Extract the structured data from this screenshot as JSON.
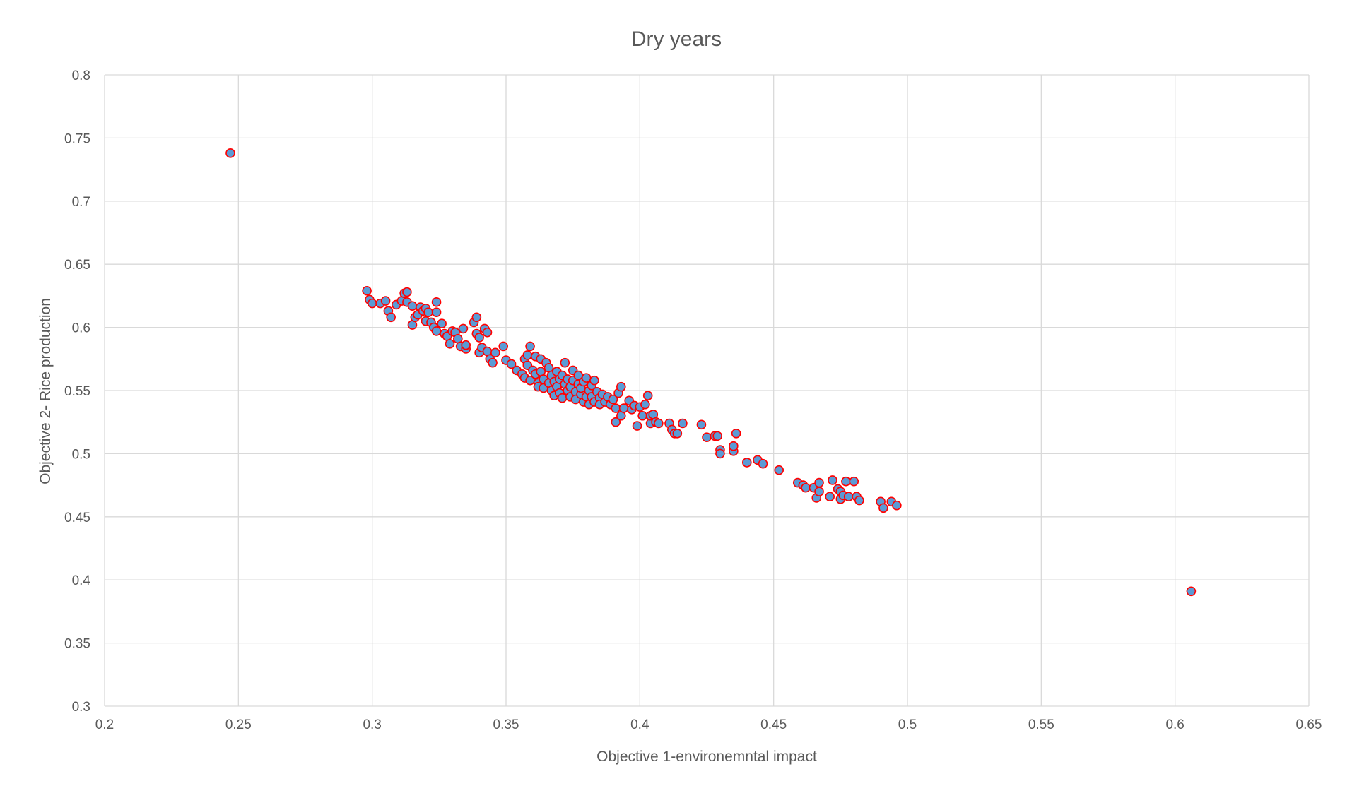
{
  "chart_data": {
    "type": "scatter",
    "title": "Dry years",
    "xlabel": "Objective 1-environemntal impact",
    "ylabel": "Objective 2- Rice production",
    "xlim": [
      0.2,
      0.65
    ],
    "ylim": [
      0.3,
      0.8
    ],
    "xticks": [
      "0.2",
      "0.25",
      "0.3",
      "0.35",
      "0.4",
      "0.45",
      "0.5",
      "0.55",
      "0.6",
      "0.65"
    ],
    "yticks": [
      "0.3",
      "0.35",
      "0.4",
      "0.45",
      "0.5",
      "0.55",
      "0.6",
      "0.65",
      "0.7",
      "0.75",
      "0.8"
    ],
    "grid": true,
    "legend": "none",
    "marker_fill": "#5b9bd5",
    "marker_edge": "#ff0000",
    "points": [
      [
        0.247,
        0.738
      ],
      [
        0.298,
        0.629
      ],
      [
        0.299,
        0.622
      ],
      [
        0.3,
        0.619
      ],
      [
        0.303,
        0.619
      ],
      [
        0.305,
        0.621
      ],
      [
        0.306,
        0.613
      ],
      [
        0.307,
        0.608
      ],
      [
        0.309,
        0.618
      ],
      [
        0.311,
        0.621
      ],
      [
        0.312,
        0.627
      ],
      [
        0.313,
        0.628
      ],
      [
        0.313,
        0.62
      ],
      [
        0.315,
        0.617
      ],
      [
        0.315,
        0.602
      ],
      [
        0.316,
        0.608
      ],
      [
        0.317,
        0.61
      ],
      [
        0.318,
        0.616
      ],
      [
        0.319,
        0.613
      ],
      [
        0.32,
        0.605
      ],
      [
        0.32,
        0.615
      ],
      [
        0.321,
        0.612
      ],
      [
        0.322,
        0.604
      ],
      [
        0.323,
        0.6
      ],
      [
        0.324,
        0.62
      ],
      [
        0.324,
        0.612
      ],
      [
        0.324,
        0.597
      ],
      [
        0.326,
        0.603
      ],
      [
        0.327,
        0.595
      ],
      [
        0.328,
        0.593
      ],
      [
        0.329,
        0.587
      ],
      [
        0.33,
        0.597
      ],
      [
        0.331,
        0.596
      ],
      [
        0.332,
        0.591
      ],
      [
        0.333,
        0.585
      ],
      [
        0.334,
        0.599
      ],
      [
        0.335,
        0.583
      ],
      [
        0.335,
        0.586
      ],
      [
        0.338,
        0.604
      ],
      [
        0.339,
        0.608
      ],
      [
        0.339,
        0.595
      ],
      [
        0.34,
        0.58
      ],
      [
        0.34,
        0.592
      ],
      [
        0.341,
        0.584
      ],
      [
        0.342,
        0.599
      ],
      [
        0.343,
        0.581
      ],
      [
        0.343,
        0.596
      ],
      [
        0.344,
        0.575
      ],
      [
        0.345,
        0.572
      ],
      [
        0.346,
        0.58
      ],
      [
        0.349,
        0.585
      ],
      [
        0.35,
        0.574
      ],
      [
        0.352,
        0.571
      ],
      [
        0.354,
        0.566
      ],
      [
        0.356,
        0.563
      ],
      [
        0.357,
        0.575
      ],
      [
        0.357,
        0.56
      ],
      [
        0.358,
        0.578
      ],
      [
        0.358,
        0.57
      ],
      [
        0.359,
        0.585
      ],
      [
        0.359,
        0.558
      ],
      [
        0.36,
        0.566
      ],
      [
        0.361,
        0.563
      ],
      [
        0.361,
        0.577
      ],
      [
        0.362,
        0.556
      ],
      [
        0.362,
        0.553
      ],
      [
        0.363,
        0.575
      ],
      [
        0.363,
        0.565
      ],
      [
        0.364,
        0.559
      ],
      [
        0.364,
        0.552
      ],
      [
        0.365,
        0.572
      ],
      [
        0.366,
        0.568
      ],
      [
        0.366,
        0.556
      ],
      [
        0.367,
        0.562
      ],
      [
        0.367,
        0.55
      ],
      [
        0.368,
        0.557
      ],
      [
        0.368,
        0.546
      ],
      [
        0.369,
        0.565
      ],
      [
        0.369,
        0.553
      ],
      [
        0.37,
        0.559
      ],
      [
        0.37,
        0.548
      ],
      [
        0.371,
        0.562
      ],
      [
        0.371,
        0.544
      ],
      [
        0.372,
        0.572
      ],
      [
        0.372,
        0.555
      ],
      [
        0.373,
        0.55
      ],
      [
        0.373,
        0.559
      ],
      [
        0.374,
        0.545
      ],
      [
        0.374,
        0.553
      ],
      [
        0.375,
        0.566
      ],
      [
        0.375,
        0.558
      ],
      [
        0.376,
        0.549
      ],
      [
        0.376,
        0.543
      ],
      [
        0.377,
        0.555
      ],
      [
        0.377,
        0.562
      ],
      [
        0.378,
        0.547
      ],
      [
        0.378,
        0.552
      ],
      [
        0.379,
        0.541
      ],
      [
        0.379,
        0.557
      ],
      [
        0.38,
        0.545
      ],
      [
        0.38,
        0.56
      ],
      [
        0.381,
        0.55
      ],
      [
        0.381,
        0.539
      ],
      [
        0.382,
        0.554
      ],
      [
        0.382,
        0.545
      ],
      [
        0.383,
        0.558
      ],
      [
        0.383,
        0.541
      ],
      [
        0.384,
        0.549
      ],
      [
        0.385,
        0.544
      ],
      [
        0.385,
        0.539
      ],
      [
        0.386,
        0.547
      ],
      [
        0.387,
        0.541
      ],
      [
        0.388,
        0.545
      ],
      [
        0.389,
        0.539
      ],
      [
        0.39,
        0.543
      ],
      [
        0.391,
        0.536
      ],
      [
        0.391,
        0.525
      ],
      [
        0.392,
        0.548
      ],
      [
        0.393,
        0.553
      ],
      [
        0.393,
        0.53
      ],
      [
        0.394,
        0.536
      ],
      [
        0.396,
        0.542
      ],
      [
        0.397,
        0.535
      ],
      [
        0.398,
        0.538
      ],
      [
        0.399,
        0.522
      ],
      [
        0.4,
        0.537
      ],
      [
        0.401,
        0.53
      ],
      [
        0.402,
        0.539
      ],
      [
        0.403,
        0.546
      ],
      [
        0.404,
        0.524
      ],
      [
        0.404,
        0.53
      ],
      [
        0.405,
        0.531
      ],
      [
        0.406,
        0.525
      ],
      [
        0.407,
        0.524
      ],
      [
        0.411,
        0.524
      ],
      [
        0.412,
        0.519
      ],
      [
        0.413,
        0.516
      ],
      [
        0.414,
        0.516
      ],
      [
        0.416,
        0.524
      ],
      [
        0.423,
        0.523
      ],
      [
        0.425,
        0.513
      ],
      [
        0.428,
        0.514
      ],
      [
        0.429,
        0.514
      ],
      [
        0.43,
        0.503
      ],
      [
        0.43,
        0.5
      ],
      [
        0.435,
        0.502
      ],
      [
        0.435,
        0.506
      ],
      [
        0.436,
        0.516
      ],
      [
        0.44,
        0.493
      ],
      [
        0.444,
        0.495
      ],
      [
        0.446,
        0.492
      ],
      [
        0.452,
        0.487
      ],
      [
        0.459,
        0.477
      ],
      [
        0.461,
        0.475
      ],
      [
        0.462,
        0.473
      ],
      [
        0.465,
        0.473
      ],
      [
        0.466,
        0.465
      ],
      [
        0.467,
        0.477
      ],
      [
        0.467,
        0.47
      ],
      [
        0.471,
        0.466
      ],
      [
        0.472,
        0.479
      ],
      [
        0.474,
        0.472
      ],
      [
        0.475,
        0.47
      ],
      [
        0.475,
        0.464
      ],
      [
        0.476,
        0.467
      ],
      [
        0.477,
        0.478
      ],
      [
        0.478,
        0.466
      ],
      [
        0.48,
        0.478
      ],
      [
        0.481,
        0.466
      ],
      [
        0.482,
        0.463
      ],
      [
        0.49,
        0.462
      ],
      [
        0.491,
        0.457
      ],
      [
        0.494,
        0.462
      ],
      [
        0.496,
        0.459
      ],
      [
        0.606,
        0.391
      ]
    ]
  }
}
